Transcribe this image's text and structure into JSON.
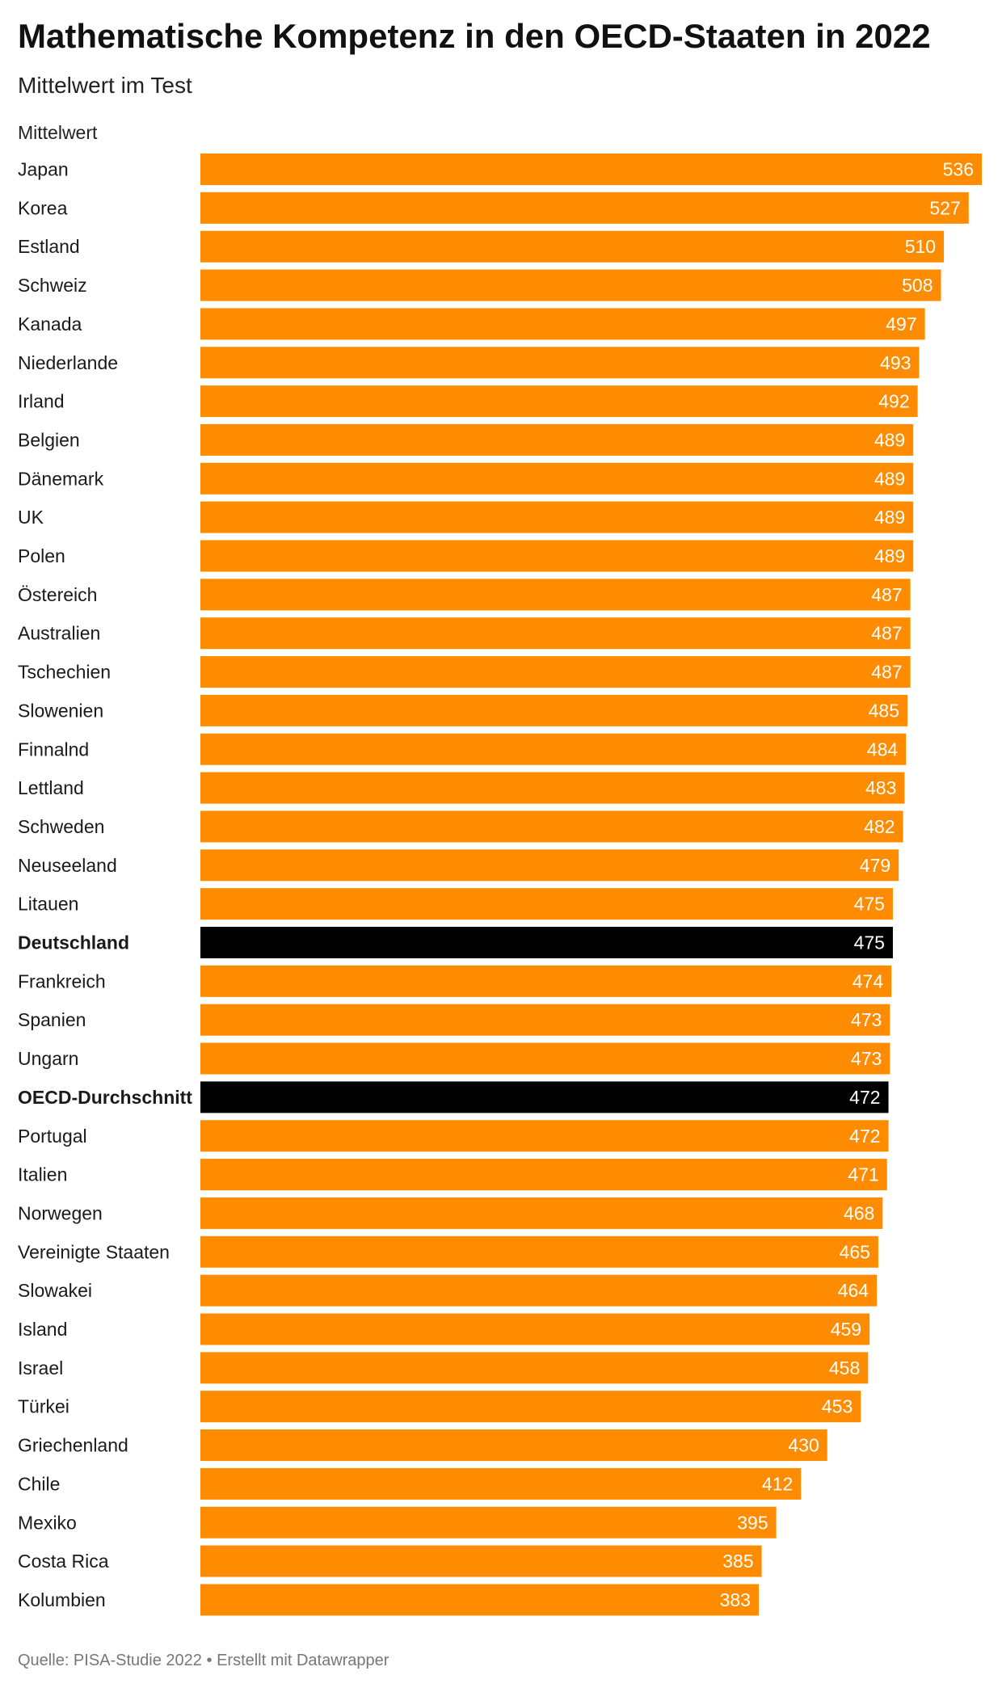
{
  "title": "Mathematische Kompetenz in den OECD-Staaten in 2022",
  "subtitle": "Mittelwert im Test",
  "column_header": "Mittelwert",
  "footer": {
    "source": "Quelle: PISA-Studie 2022",
    "separator": "•",
    "credit": "Erstellt mit Datawrapper"
  },
  "colors": {
    "bar": "#FF8C00",
    "highlight_bar": "#000000",
    "value_label": "#ffffff",
    "category_label": "#1a1a1a"
  },
  "chart_data": {
    "type": "bar",
    "orientation": "horizontal",
    "title": "Mathematische Kompetenz in den OECD-Staaten in 2022",
    "subtitle": "Mittelwert im Test",
    "ylabel": "Mittelwert",
    "xlim": [
      0,
      536
    ],
    "grid": false,
    "legend": "none",
    "highlighted": [
      "Deutschland",
      "OECD-Durchschnitt"
    ],
    "categories": [
      "Japan",
      "Korea",
      "Estland",
      "Schweiz",
      "Kanada",
      "Niederlande",
      "Irland",
      "Belgien",
      "Dänemark",
      "UK",
      "Polen",
      "Östereich",
      "Australien",
      "Tschechien",
      "Slowenien",
      "Finnalnd",
      "Lettland",
      "Schweden",
      "Neuseeland",
      "Litauen",
      "Deutschland",
      "Frankreich",
      "Spanien",
      "Ungarn",
      "OECD-Durchschnitt",
      "Portugal",
      "Italien",
      "Norwegen",
      "Vereinigte Staaten",
      "Slowakei",
      "Island",
      "Israel",
      "Türkei",
      "Griechenland",
      "Chile",
      "Mexiko",
      "Costa Rica",
      "Kolumbien"
    ],
    "values": [
      536,
      527,
      510,
      508,
      497,
      493,
      492,
      489,
      489,
      489,
      489,
      487,
      487,
      487,
      485,
      484,
      483,
      482,
      479,
      475,
      475,
      474,
      473,
      473,
      472,
      472,
      471,
      468,
      465,
      464,
      459,
      458,
      453,
      430,
      412,
      395,
      385,
      383
    ]
  }
}
